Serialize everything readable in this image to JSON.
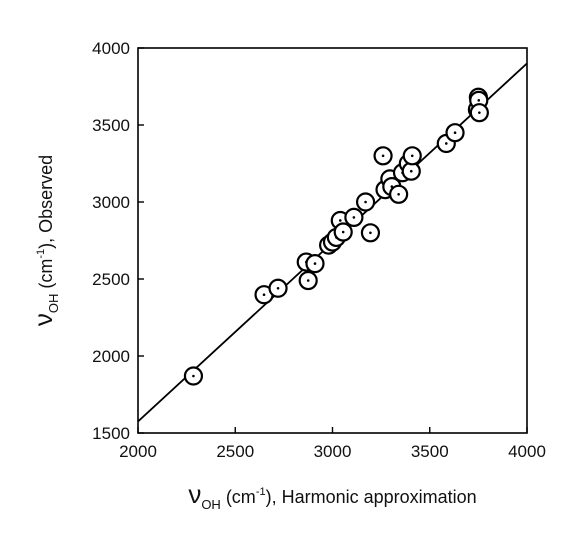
{
  "chart_data": {
    "type": "scatter",
    "x_axis": {
      "symbol": "ν",
      "subscript": "OH",
      "unit_open": " (cm",
      "unit_sup": "-1",
      "unit_close": "), Harmonic approximation",
      "range": [
        2000,
        4000
      ],
      "ticks": [
        2000,
        2500,
        3000,
        3500,
        4000
      ]
    },
    "y_axis": {
      "symbol": "ν",
      "subscript": "OH",
      "unit_open": " (cm",
      "unit_sup": "-1",
      "unit_close": "), Observed",
      "range": [
        1500,
        4000
      ],
      "ticks": [
        1500,
        2000,
        2500,
        3000,
        3500,
        4000
      ]
    },
    "grid": false,
    "legend": "none",
    "fit_line": {
      "x": [
        2000,
        4000
      ],
      "y": [
        1575,
        3900
      ]
    },
    "marker": {
      "shape": "open-circle-with-center-dot",
      "color": "#000000"
    },
    "points": [
      {
        "x": 2285,
        "y": 1870
      },
      {
        "x": 2648,
        "y": 2398
      },
      {
        "x": 2720,
        "y": 2440
      },
      {
        "x": 2865,
        "y": 2610
      },
      {
        "x": 2875,
        "y": 2490
      },
      {
        "x": 2910,
        "y": 2600
      },
      {
        "x": 2980,
        "y": 2720
      },
      {
        "x": 3000,
        "y": 2740
      },
      {
        "x": 3020,
        "y": 2770
      },
      {
        "x": 3040,
        "y": 2880
      },
      {
        "x": 3055,
        "y": 2805
      },
      {
        "x": 3110,
        "y": 2900
      },
      {
        "x": 3170,
        "y": 3000
      },
      {
        "x": 3195,
        "y": 2800
      },
      {
        "x": 3260,
        "y": 3300
      },
      {
        "x": 3270,
        "y": 3080
      },
      {
        "x": 3295,
        "y": 3150
      },
      {
        "x": 3305,
        "y": 3100
      },
      {
        "x": 3340,
        "y": 3050
      },
      {
        "x": 3360,
        "y": 3190
      },
      {
        "x": 3390,
        "y": 3250
      },
      {
        "x": 3405,
        "y": 3200
      },
      {
        "x": 3410,
        "y": 3300
      },
      {
        "x": 3585,
        "y": 3380
      },
      {
        "x": 3630,
        "y": 3450
      },
      {
        "x": 3745,
        "y": 3600
      },
      {
        "x": 3750,
        "y": 3680
      },
      {
        "x": 3752,
        "y": 3660
      },
      {
        "x": 3755,
        "y": 3580
      }
    ]
  }
}
